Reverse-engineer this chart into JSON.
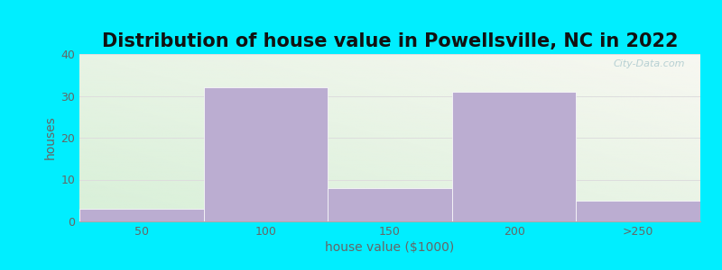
{
  "title": "Distribution of house value in Powellsville, NC in 2022",
  "xlabel": "house value ($1000)",
  "ylabel": "houses",
  "categories": [
    "50",
    "100",
    "150",
    "200",
    ">250"
  ],
  "values": [
    3,
    32,
    8,
    31,
    5
  ],
  "bar_color": "#bbadd1",
  "ylim": [
    0,
    40
  ],
  "yticks": [
    0,
    10,
    20,
    30,
    40
  ],
  "outer_bg": "#00eeff",
  "plot_bg_top_right": "#f8f8f2",
  "plot_bg_bottom_left": "#d8f0d8",
  "title_fontsize": 15,
  "label_fontsize": 10,
  "tick_fontsize": 9,
  "tick_color": "#666666",
  "label_color": "#666666",
  "title_color": "#111111",
  "watermark_text": "City-Data.com",
  "watermark_color": "#b0ccd0",
  "grid_color": "#dddddd"
}
